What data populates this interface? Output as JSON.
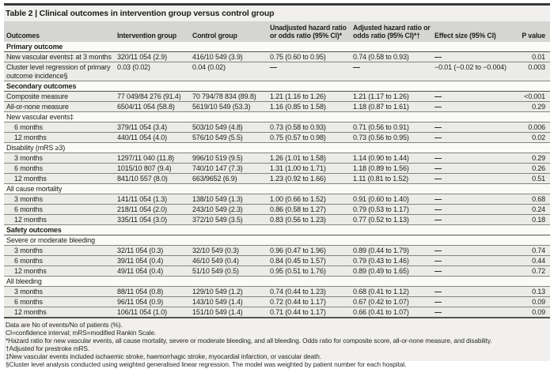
{
  "title": "Table 2 | Clinical outcomes in intervention group versus control group",
  "table": {
    "columns": [
      "Outcomes",
      "Intervention group",
      "Control group",
      "Unadjusted hazard ratio or odds ratio (95% CI)*",
      "Adjusted hazard ratio or odds ratio (95% CI)*†",
      "Effect size (95% CI)",
      "P value"
    ],
    "rows": [
      {
        "type": "section",
        "label": "Primary outcome"
      },
      {
        "type": "data",
        "label": "New vascular events‡ at 3 months",
        "cells": [
          "320/11 054 (2.9)",
          "416/10 549 (3.9)",
          "0.75 (0.60 to 0.95)",
          "0.74 (0.58 to 0.93)",
          "—",
          "0.01"
        ]
      },
      {
        "type": "data",
        "label": "Cluster level regression of primary outcome incidence§",
        "cells": [
          "0.03 (0.02)",
          "0.04 (0.02)",
          "—",
          "—",
          "−0.01 (−0.02 to −0.004)",
          "0.003"
        ]
      },
      {
        "type": "section",
        "label": "Secondary outcomes"
      },
      {
        "type": "data",
        "label": "Composite measure",
        "cells": [
          "77 049/84 276 (91.4)",
          "70 794/78 834 (89.8)",
          "1.21 (1.16 to 1.26)",
          "1.21 (1.17 to 1.26)",
          "—",
          "<0.001"
        ]
      },
      {
        "type": "data",
        "label": "All-or-none measure",
        "cells": [
          "6504/11 054 (58.8)",
          "5619/10 549 (53.3)",
          "1.16 (0.85 to 1.58)",
          "1.18 (0.87 to 1.61)",
          "—",
          "0.29"
        ]
      },
      {
        "type": "subsection",
        "label": "New vascular events‡"
      },
      {
        "type": "data",
        "indent": true,
        "label": "6 months",
        "cells": [
          "379/11 054 (3.4)",
          "503/10 549 (4.8)",
          "0.73 (0.58 to 0.93)",
          "0.71 (0.56 to 0.91)",
          "—",
          "0.006"
        ]
      },
      {
        "type": "data",
        "indent": true,
        "label": "12 months",
        "cells": [
          "440/11 054 (4.0)",
          "576/10 549 (5.5)",
          "0.75 (0.57 to 0.98)",
          "0.73 (0.56 to 0.95)",
          "—",
          "0.02"
        ]
      },
      {
        "type": "subsection",
        "label": "Disability (mRS ≥3)"
      },
      {
        "type": "data",
        "indent": true,
        "label": "3 months",
        "cells": [
          "1297/11 040 (11.8)",
          "996/10 519 (9.5)",
          "1.26 (1.01 to 1.58)",
          "1.14 (0.90 to 1.44)",
          "—",
          "0.29"
        ]
      },
      {
        "type": "data",
        "indent": true,
        "label": "6 months",
        "cells": [
          "1015/10 807 (9.4)",
          "740/10 147 (7.3)",
          "1.31 (1.00 to 1.71)",
          "1.18 (0.89 to 1.56)",
          "—",
          "0.26"
        ]
      },
      {
        "type": "data",
        "indent": true,
        "label": "12 months",
        "cells": [
          "841/10 557 (8.0)",
          "663/9652 (6.9)",
          "1.23 (0.92 to 1.66)",
          "1.11 (0.81 to 1.52)",
          "—",
          "0.51"
        ]
      },
      {
        "type": "subsection",
        "label": "All cause mortality"
      },
      {
        "type": "data",
        "indent": true,
        "label": "3 months",
        "cells": [
          "141/11 054 (1.3)",
          "138/10 549 (1.3)",
          "1.00 (0.66 to 1.52)",
          "0.91 (0.60 to 1.40)",
          "—",
          "0.68"
        ]
      },
      {
        "type": "data",
        "indent": true,
        "label": "6 months",
        "cells": [
          "218/11 054 (2.0)",
          "243/10 549 (2.3)",
          "0.86 (0.58 to 1.27)",
          "0.79 (0.53 to 1.17)",
          "—",
          "0.24"
        ]
      },
      {
        "type": "data",
        "indent": true,
        "label": "12 months",
        "cells": [
          "335/11 054 (3.0)",
          "372/10 549 (3.5)",
          "0.83 (0.56 to 1.23)",
          "0.77 (0.52 to 1.13)",
          "—",
          "0.18"
        ]
      },
      {
        "type": "section",
        "label": "Safety outcomes"
      },
      {
        "type": "subsection",
        "label": "Severe or moderate bleeding"
      },
      {
        "type": "data",
        "indent": true,
        "label": "3 months",
        "cells": [
          "32/11 054 (0.3)",
          "32/10 549 (0.3)",
          "0.96 (0.47 to 1.96)",
          "0.89 (0.44 to 1.79)",
          "—",
          "0.74"
        ]
      },
      {
        "type": "data",
        "indent": true,
        "label": "6 months",
        "cells": [
          "39/11 054 (0.4)",
          "46/10 549 (0.4)",
          "0.84 (0.45 to 1.57)",
          "0.79 (0.43 to 1.46)",
          "—",
          "0.44"
        ]
      },
      {
        "type": "data",
        "indent": true,
        "label": "12 months",
        "cells": [
          "49/11 054 (0.4)",
          "51/10 549 (0.5)",
          "0.95 (0.51 to 1.76)",
          "0.89 (0.49 to 1.65)",
          "—",
          "0.72"
        ]
      },
      {
        "type": "subsection",
        "label": "All bleeding"
      },
      {
        "type": "data",
        "indent": true,
        "label": "3 months",
        "cells": [
          "88/11 054 (0.8)",
          "129/10 549 (1.2)",
          "0.74 (0.44 to 1.23)",
          "0.68 (0.41 to 1.12)",
          "—",
          "0.13"
        ]
      },
      {
        "type": "data",
        "indent": true,
        "label": "6 months",
        "cells": [
          "96/11 054 (0.9)",
          "143/10 549 (1.4)",
          "0.72 (0.44 to 1.17)",
          "0.67 (0.42 to 1.07)",
          "—",
          "0.09"
        ]
      },
      {
        "type": "data",
        "indent": true,
        "label": "12 months",
        "cells": [
          "106/11 054 (1.0)",
          "151/10 549 (1.4)",
          "0.71 (0.44 to 1.17)",
          "0.66 (0.41 to 1.07)",
          "—",
          "0.09"
        ]
      }
    ]
  },
  "footnotes": [
    "Data are No of events/No of patients (%).",
    "CI=confidence interval; mRS=modified Rankin Scale.",
    "*Hazard ratio for new vascular events, all cause mortality, severe or moderate bleeding, and all bleeding. Odds ratio for composite score, all-or-none measure, and disability.",
    "†Adjusted for prestroke mRS.",
    "‡New vascular events included ischaemic stroke, haemorrhagic stroke, myocardial infarction, or vascular death.",
    "§Cluster level analysis conducted using weighted generalised linear regression. The model was weighted by patient number for each hospital."
  ],
  "colors": {
    "page_bg": "#f1f0ee",
    "header_bg": "#d5d5d3",
    "data_row_bg": "#ebebe8",
    "section_row_bg": "#fafaf7",
    "rule": "#85857f",
    "heavy_rule": "#3a3a38",
    "text": "#1d1d1b"
  }
}
